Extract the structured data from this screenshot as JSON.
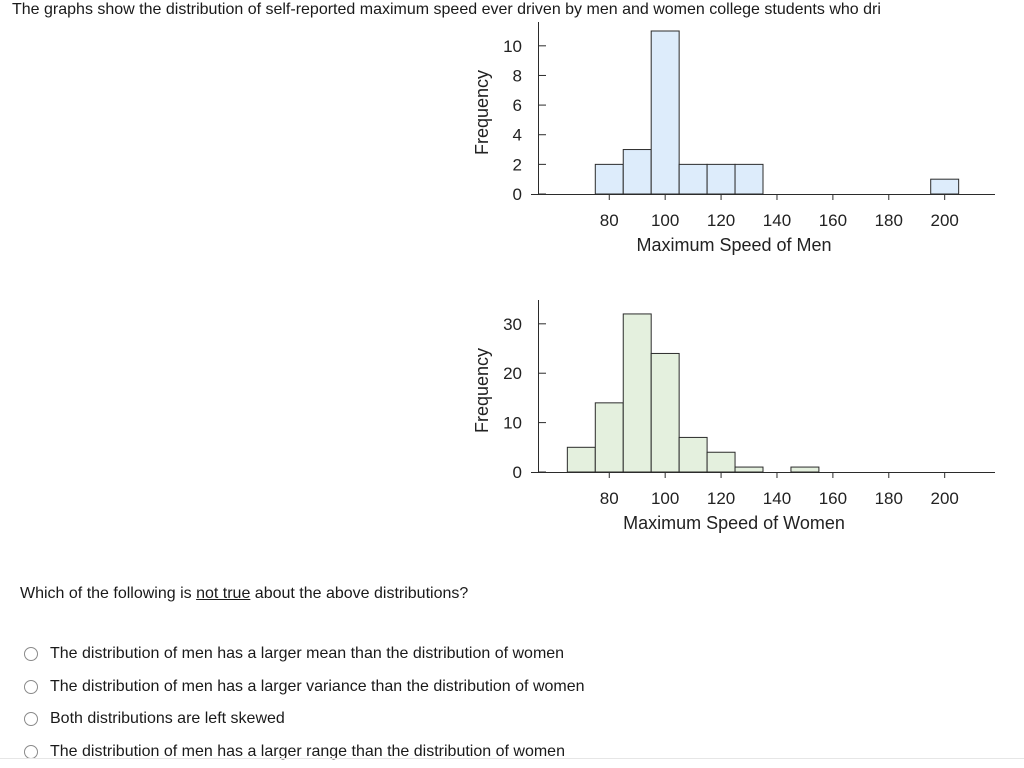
{
  "header": {
    "text": "The graphs show the distribution of self-reported maximum speed ever driven by men and women college students who dri"
  },
  "question": {
    "prefix": "Which of the following is ",
    "emphasis": "not true",
    "suffix": " about the above distributions?"
  },
  "options": [
    {
      "label": "The distribution of men has a larger mean than the distribution of women"
    },
    {
      "label": "The distribution of men has a larger variance than the distribution of women"
    },
    {
      "label": "Both distributions are left skewed"
    },
    {
      "label": "The distribution of men has a larger range than the distribution of women"
    }
  ],
  "chart_data": [
    {
      "type": "bar",
      "subtype": "histogram",
      "xlabel": "Maximum Speed of Men",
      "ylabel": "Frequency",
      "xlim": [
        52,
        218
      ],
      "ylim": [
        0,
        11
      ],
      "x_ticks": [
        80,
        100,
        120,
        140,
        160,
        180,
        200
      ],
      "y_ticks": [
        0,
        2,
        4,
        6,
        8,
        10
      ],
      "bin_width": 10,
      "bins": [
        {
          "start": 75,
          "end": 85,
          "value": 2
        },
        {
          "start": 85,
          "end": 95,
          "value": 3
        },
        {
          "start": 95,
          "end": 105,
          "value": 11
        },
        {
          "start": 105,
          "end": 115,
          "value": 2
        },
        {
          "start": 115,
          "end": 125,
          "value": 2
        },
        {
          "start": 125,
          "end": 135,
          "value": 2
        },
        {
          "start": 195,
          "end": 205,
          "value": 1
        }
      ],
      "bar_color": "#ddecfb",
      "grid": false
    },
    {
      "type": "bar",
      "subtype": "histogram",
      "xlabel": "Maximum Speed of Women",
      "ylabel": "Frequency",
      "xlim": [
        52,
        218
      ],
      "ylim": [
        0,
        33
      ],
      "x_ticks": [
        80,
        100,
        120,
        140,
        160,
        180,
        200
      ],
      "y_ticks": [
        0,
        10,
        20,
        30
      ],
      "bin_width": 10,
      "bins": [
        {
          "start": 65,
          "end": 75,
          "value": 5
        },
        {
          "start": 75,
          "end": 85,
          "value": 14
        },
        {
          "start": 85,
          "end": 95,
          "value": 32
        },
        {
          "start": 95,
          "end": 105,
          "value": 24
        },
        {
          "start": 105,
          "end": 115,
          "value": 7
        },
        {
          "start": 115,
          "end": 125,
          "value": 4
        },
        {
          "start": 125,
          "end": 135,
          "value": 1
        },
        {
          "start": 145,
          "end": 155,
          "value": 1
        }
      ],
      "bar_color": "#e4f0de",
      "grid": false
    }
  ]
}
